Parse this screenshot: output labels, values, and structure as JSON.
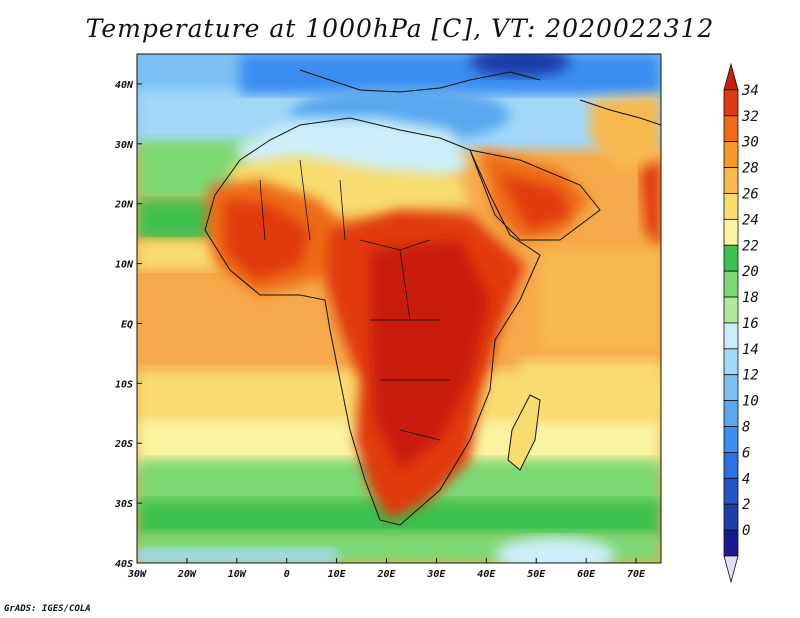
{
  "title": "Temperature at 1000hPa [C], VT: 2020022312",
  "credit": "GrADS: IGES/COLA",
  "map": {
    "lon_range": [
      -30,
      75
    ],
    "lat_range": [
      -40,
      45
    ],
    "lon_ticks": [
      "30W",
      "20W",
      "10W",
      "0",
      "10E",
      "20E",
      "30E",
      "40E",
      "50E",
      "60E",
      "70E"
    ],
    "lat_ticks": [
      "40N",
      "30N",
      "20N",
      "10N",
      "EQ",
      "10S",
      "20S",
      "30S",
      "40S"
    ]
  },
  "colorbar": {
    "levels": [
      "0",
      "2",
      "4",
      "6",
      "8",
      "10",
      "12",
      "14",
      "16",
      "18",
      "20",
      "22",
      "24",
      "26",
      "28",
      "30",
      "32",
      "34"
    ],
    "colors": [
      "#1a1a8c",
      "#1e3ea8",
      "#2256c8",
      "#2a72e0",
      "#3a8ef0",
      "#5aa8f0",
      "#7cc0f4",
      "#a4d8f8",
      "#cceef8",
      "#b0e8a0",
      "#7cd874",
      "#3ec050",
      "#f8f4a0",
      "#f8dc70",
      "#f8b850",
      "#f49a2c",
      "#ee6a18",
      "#e03a10",
      "#c81e0c"
    ],
    "below_color": "#e4dcff"
  }
}
